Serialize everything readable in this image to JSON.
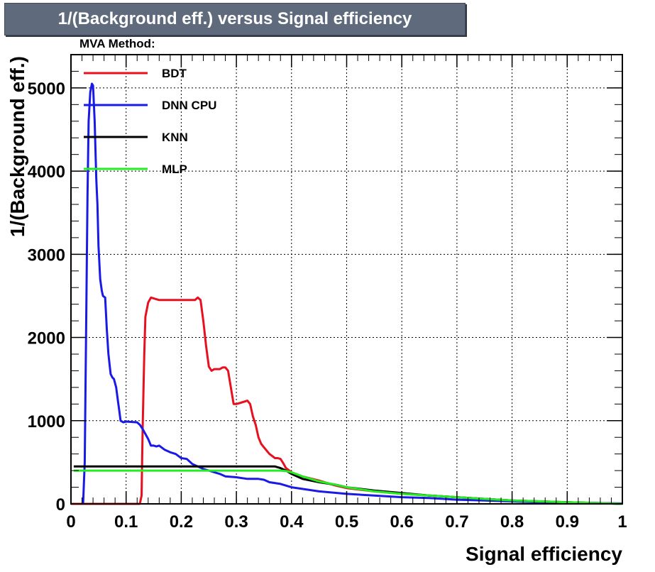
{
  "chart_data": {
    "type": "line",
    "title": "1/(Background eff.) versus Signal efficiency",
    "xlabel": "Signal efficiency",
    "ylabel": "1/(Background eff.)",
    "xlim": [
      0,
      1
    ],
    "ylim": [
      0,
      5400
    ],
    "x_ticks": [
      "0",
      "0.1",
      "0.2",
      "0.3",
      "0.4",
      "0.5",
      "0.6",
      "0.7",
      "0.8",
      "0.9",
      "1"
    ],
    "y_ticks": [
      "0",
      "1000",
      "2000",
      "3000",
      "4000",
      "5000"
    ],
    "grid": true,
    "legend_title": "MVA Method:",
    "legend_position": "top-left",
    "series": [
      {
        "name": "BDT",
        "color": "#e8101e",
        "x": [
          0.0,
          0.05,
          0.11,
          0.125,
          0.128,
          0.13,
          0.133,
          0.135,
          0.14,
          0.145,
          0.16,
          0.2,
          0.225,
          0.23,
          0.235,
          0.24,
          0.245,
          0.25,
          0.255,
          0.26,
          0.27,
          0.275,
          0.28,
          0.285,
          0.29,
          0.295,
          0.3,
          0.31,
          0.32,
          0.325,
          0.33,
          0.335,
          0.34,
          0.345,
          0.35,
          0.36,
          0.37,
          0.375,
          0.38,
          0.385,
          0.39,
          0.4,
          0.42,
          0.45,
          0.48,
          0.5,
          0.55,
          0.6,
          0.65,
          0.7,
          0.75,
          0.8,
          0.85,
          0.9,
          0.95,
          1.0
        ],
        "y": [
          0,
          0,
          0,
          0,
          100,
          900,
          1800,
          2250,
          2420,
          2480,
          2450,
          2450,
          2450,
          2480,
          2450,
          2200,
          1900,
          1650,
          1600,
          1620,
          1620,
          1640,
          1640,
          1600,
          1400,
          1200,
          1200,
          1220,
          1240,
          1200,
          1050,
          950,
          800,
          720,
          680,
          600,
          550,
          550,
          540,
          490,
          430,
          380,
          330,
          280,
          220,
          190,
          150,
          120,
          100,
          80,
          60,
          40,
          30,
          20,
          10,
          0
        ]
      },
      {
        "name": "DNN CPU",
        "color": "#1a1ae6",
        "x": [
          0.022,
          0.025,
          0.027,
          0.03,
          0.032,
          0.035,
          0.038,
          0.04,
          0.043,
          0.046,
          0.048,
          0.05,
          0.053,
          0.056,
          0.058,
          0.062,
          0.065,
          0.068,
          0.072,
          0.075,
          0.078,
          0.082,
          0.085,
          0.088,
          0.09,
          0.095,
          0.1,
          0.12,
          0.125,
          0.13,
          0.135,
          0.14,
          0.145,
          0.15,
          0.155,
          0.16,
          0.17,
          0.18,
          0.19,
          0.2,
          0.21,
          0.22,
          0.23,
          0.24,
          0.25,
          0.26,
          0.27,
          0.28,
          0.3,
          0.32,
          0.34,
          0.35,
          0.36,
          0.38,
          0.4,
          0.45,
          0.5,
          0.55,
          0.6,
          0.65,
          0.7,
          0.75,
          0.8,
          0.85,
          0.9,
          0.95,
          1.0
        ],
        "y": [
          0,
          500,
          1800,
          3700,
          4600,
          4950,
          5050,
          5030,
          4600,
          3900,
          3600,
          3100,
          2700,
          2560,
          2500,
          2480,
          2100,
          1800,
          1560,
          1520,
          1500,
          1400,
          1250,
          1100,
          1000,
          980,
          990,
          980,
          950,
          900,
          840,
          780,
          700,
          700,
          690,
          700,
          650,
          620,
          600,
          550,
          540,
          480,
          450,
          420,
          400,
          380,
          360,
          330,
          320,
          300,
          300,
          290,
          260,
          240,
          200,
          150,
          120,
          100,
          80,
          70,
          50,
          40,
          30,
          20,
          15,
          10,
          5
        ]
      },
      {
        "name": "KNN",
        "color": "#000000",
        "x": [
          0.005,
          0.1,
          0.2,
          0.3,
          0.37,
          0.375,
          0.38,
          0.39,
          0.4,
          0.42,
          0.45,
          0.48,
          0.5,
          0.55,
          0.6,
          0.65,
          0.7,
          0.75,
          0.8,
          0.85,
          0.9,
          0.95,
          1.0
        ],
        "y": [
          450,
          450,
          450,
          450,
          450,
          440,
          430,
          400,
          360,
          300,
          260,
          230,
          200,
          160,
          130,
          100,
          80,
          60,
          40,
          30,
          20,
          10,
          0
        ]
      },
      {
        "name": "MLP",
        "color": "#22ee22",
        "x": [
          0.005,
          0.1,
          0.2,
          0.3,
          0.38,
          0.39,
          0.4,
          0.42,
          0.45,
          0.48,
          0.5,
          0.55,
          0.6,
          0.65,
          0.7,
          0.75,
          0.8,
          0.85,
          0.9,
          0.95,
          1.0
        ],
        "y": [
          400,
          400,
          400,
          400,
          400,
          395,
          380,
          330,
          270,
          230,
          200,
          150,
          120,
          100,
          80,
          60,
          40,
          30,
          20,
          10,
          0
        ]
      }
    ]
  }
}
